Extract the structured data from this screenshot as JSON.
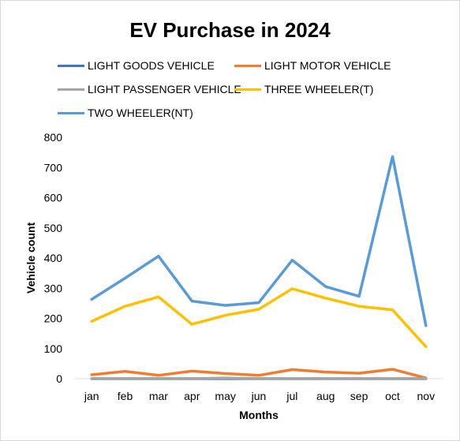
{
  "chart_data": {
    "type": "line",
    "title": "EV Purchase in 2024",
    "xlabel": "Months",
    "ylabel": "Vehicle count",
    "categories": [
      "jan",
      "feb",
      "mar",
      "apr",
      "may",
      "jun",
      "jul",
      "aug",
      "sep",
      "oct",
      "nov"
    ],
    "ylim": [
      0,
      800
    ],
    "yticks": [
      0,
      100,
      200,
      300,
      400,
      500,
      600,
      700,
      800
    ],
    "grid": false,
    "legend_position": "top",
    "series": [
      {
        "name": "LIGHT GOODS VEHICLE",
        "color": "#4472c4",
        "values": [
          0,
          0,
          0,
          0,
          0,
          0,
          0,
          0,
          0,
          0,
          0
        ]
      },
      {
        "name": "LIGHT MOTOR VEHICLE",
        "color": "#ed7d31",
        "values": [
          13,
          24,
          11,
          25,
          17,
          11,
          30,
          22,
          18,
          31,
          2
        ]
      },
      {
        "name": "LIGHT PASSENGER VEHICLE",
        "color": "#a5a5a5",
        "values": [
          0,
          0,
          0,
          0,
          2,
          0,
          0,
          0,
          0,
          0,
          0
        ]
      },
      {
        "name": "THREE WHEELER(T)",
        "color": "#ffc000",
        "values": [
          190,
          240,
          271,
          180,
          210,
          230,
          298,
          267,
          240,
          228,
          106
        ]
      },
      {
        "name": "TWO WHEELER(NT)",
        "color": "#5b9bd5",
        "values": [
          263,
          333,
          406,
          257,
          243,
          252,
          393,
          305,
          273,
          736,
          176
        ]
      }
    ]
  }
}
